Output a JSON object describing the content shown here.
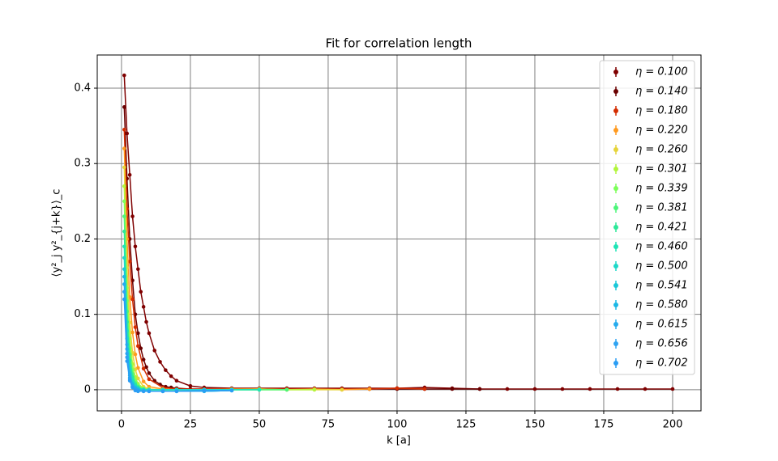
{
  "chart_data": {
    "type": "line",
    "title": "Fit for correlation length",
    "xlabel": "k [a]",
    "ylabel": "⟨y²_j y²_{j+k}⟩_c",
    "xlim": [
      -8.8,
      210.3
    ],
    "ylim": [
      -0.028,
      0.444
    ],
    "xticks": [
      0,
      25,
      50,
      75,
      100,
      125,
      150,
      175,
      200
    ],
    "yticks": [
      0.0,
      0.1,
      0.2,
      0.3,
      0.4
    ],
    "grid": true,
    "legend": "upper right",
    "series": [
      {
        "name": "η = 0.100",
        "color": "#7f0000",
        "x": [
          1,
          2,
          3,
          4,
          5,
          6,
          7,
          8,
          9,
          10,
          12,
          14,
          16,
          18,
          20,
          25,
          30,
          40,
          50,
          60,
          70,
          80,
          90,
          100,
          110,
          120,
          130,
          140,
          150,
          160,
          170,
          180,
          190,
          200
        ],
        "values": [
          0.417,
          0.34,
          0.285,
          0.23,
          0.19,
          0.16,
          0.13,
          0.11,
          0.09,
          0.075,
          0.052,
          0.037,
          0.026,
          0.018,
          0.012,
          0.005,
          0.003,
          0.002,
          0.002,
          0.002,
          0.002,
          0.002,
          0.002,
          0.002,
          0.003,
          0.002,
          0.001,
          0.001,
          0.001,
          0.001,
          0.001,
          0.001,
          0.001,
          0.001
        ]
      },
      {
        "name": "η = 0.140",
        "color": "#6a0000",
        "x": [
          1,
          2,
          3,
          4,
          5,
          6,
          7,
          8,
          9,
          10,
          12,
          14,
          16,
          18,
          20,
          25,
          30,
          40,
          50,
          60,
          70,
          80,
          90,
          100,
          110,
          120,
          130
        ],
        "values": [
          0.375,
          0.28,
          0.2,
          0.145,
          0.1,
          0.075,
          0.055,
          0.04,
          0.03,
          0.022,
          0.012,
          0.007,
          0.004,
          0.003,
          0.002,
          0.001,
          0.001,
          0.001,
          0.001,
          0.001,
          0.001,
          0.001,
          0.001,
          0.001,
          0.001,
          0.001,
          0.001
        ]
      },
      {
        "name": "η = 0.180",
        "color": "#d42c00",
        "x": [
          1,
          2,
          3,
          4,
          5,
          6,
          8,
          10,
          15,
          20,
          30,
          40,
          50,
          60,
          70,
          80,
          90,
          100,
          110
        ],
        "values": [
          0.345,
          0.24,
          0.17,
          0.12,
          0.083,
          0.058,
          0.028,
          0.014,
          0.003,
          0.001,
          0.001,
          0.001,
          0.001,
          0.001,
          0.001,
          0.001,
          0.001,
          0.002,
          0.001
        ]
      },
      {
        "name": "η = 0.220",
        "color": "#ff9a1f",
        "x": [
          1,
          2,
          3,
          4,
          5,
          6,
          8,
          10,
          15,
          20,
          30,
          40,
          50,
          60,
          70,
          80,
          90
        ],
        "values": [
          0.32,
          0.2,
          0.123,
          0.076,
          0.047,
          0.029,
          0.011,
          0.004,
          0.001,
          0,
          0,
          0.001,
          0.001,
          0,
          0.001,
          0,
          0.001
        ]
      },
      {
        "name": "η = 0.260",
        "color": "#e6d43a",
        "x": [
          1,
          2,
          3,
          4,
          5,
          6,
          8,
          10,
          15,
          20,
          30,
          40,
          50,
          60,
          70,
          80
        ],
        "values": [
          0.295,
          0.162,
          0.089,
          0.049,
          0.027,
          0.015,
          0.004,
          0.001,
          0,
          0,
          0,
          0,
          0.001,
          0,
          0,
          0
        ]
      },
      {
        "name": "η = 0.301",
        "color": "#b2f53c",
        "x": [
          1,
          2,
          3,
          4,
          5,
          6,
          8,
          10,
          15,
          20,
          30,
          40,
          50,
          60,
          70
        ],
        "values": [
          0.27,
          0.135,
          0.068,
          0.034,
          0.017,
          0.008,
          0.002,
          0,
          0,
          0,
          0,
          0,
          0,
          0,
          0
        ]
      },
      {
        "name": "η = 0.339",
        "color": "#7dff5a",
        "x": [
          1,
          2,
          3,
          4,
          5,
          6,
          8,
          10,
          15,
          20,
          30,
          40,
          50,
          60
        ],
        "values": [
          0.25,
          0.118,
          0.055,
          0.026,
          0.012,
          0.006,
          0.001,
          0,
          0,
          0,
          0,
          0,
          0,
          0
        ]
      },
      {
        "name": "η = 0.381",
        "color": "#4df57a",
        "x": [
          1,
          2,
          3,
          4,
          5,
          6,
          8,
          10,
          15,
          20,
          30,
          40,
          50,
          60
        ],
        "values": [
          0.23,
          0.104,
          0.047,
          0.021,
          0.009,
          0.004,
          0.001,
          0,
          0,
          0,
          0,
          0,
          0,
          0
        ]
      },
      {
        "name": "η = 0.421",
        "color": "#2de899",
        "x": [
          1,
          2,
          3,
          4,
          5,
          6,
          8,
          10,
          15,
          20,
          30,
          40,
          50
        ],
        "values": [
          0.21,
          0.09,
          0.039,
          0.017,
          0.007,
          0.003,
          0,
          0,
          0,
          0,
          0,
          0,
          0
        ]
      },
      {
        "name": "η = 0.460",
        "color": "#1ee4b5",
        "x": [
          1,
          2,
          3,
          4,
          5,
          6,
          8,
          10,
          15,
          20,
          30,
          40,
          50
        ],
        "values": [
          0.19,
          0.078,
          0.032,
          0.013,
          0.005,
          0.002,
          0,
          0,
          0,
          0,
          0,
          0,
          0
        ]
      },
      {
        "name": "η = 0.500",
        "color": "#1ed8c8",
        "x": [
          1,
          2,
          3,
          4,
          5,
          6,
          8,
          10,
          15,
          20,
          30,
          40
        ],
        "values": [
          0.175,
          0.068,
          0.027,
          0.01,
          0.004,
          0.002,
          0,
          0,
          0,
          0,
          0,
          0
        ]
      },
      {
        "name": "η = 0.541",
        "color": "#1ac8d8",
        "x": [
          1,
          2,
          3,
          4,
          5,
          6,
          8,
          10,
          15,
          20,
          30,
          40
        ],
        "values": [
          0.16,
          0.06,
          0.022,
          0.008,
          0.003,
          0.001,
          -0.001,
          -0.002,
          -0.002,
          -0.002,
          -0.002,
          -0.001
        ]
      },
      {
        "name": "η = 0.580",
        "color": "#1cb8e6",
        "x": [
          1,
          2,
          3,
          4,
          5,
          6,
          8,
          10,
          15,
          20,
          30,
          40
        ],
        "values": [
          0.15,
          0.054,
          0.019,
          0.007,
          0.002,
          0,
          -0.002,
          -0.002,
          -0.002,
          -0.002,
          -0.002,
          -0.001
        ]
      },
      {
        "name": "η = 0.615",
        "color": "#26acee",
        "x": [
          1,
          2,
          3,
          4,
          5,
          6,
          8,
          10,
          15,
          20,
          30,
          40
        ],
        "values": [
          0.14,
          0.048,
          0.016,
          0.005,
          0.001,
          -0.001,
          -0.002,
          -0.002,
          -0.002,
          -0.002,
          -0.002,
          -0.001
        ]
      },
      {
        "name": "η = 0.656",
        "color": "#30a4f2",
        "x": [
          1,
          2,
          3,
          4,
          5,
          6,
          8,
          10,
          15,
          20,
          30,
          40
        ],
        "values": [
          0.13,
          0.043,
          0.014,
          0.004,
          0,
          -0.002,
          -0.002,
          -0.002,
          -0.002,
          -0.002,
          -0.001,
          -0.001
        ]
      },
      {
        "name": "η = 0.702",
        "color": "#2a9df4",
        "x": [
          1,
          2,
          3,
          4,
          5,
          6,
          8,
          10,
          15,
          20,
          30,
          40
        ],
        "values": [
          0.12,
          0.038,
          0.012,
          0.003,
          -0.001,
          -0.002,
          -0.002,
          -0.002,
          -0.002,
          -0.002,
          -0.001,
          -0.001
        ]
      }
    ]
  }
}
